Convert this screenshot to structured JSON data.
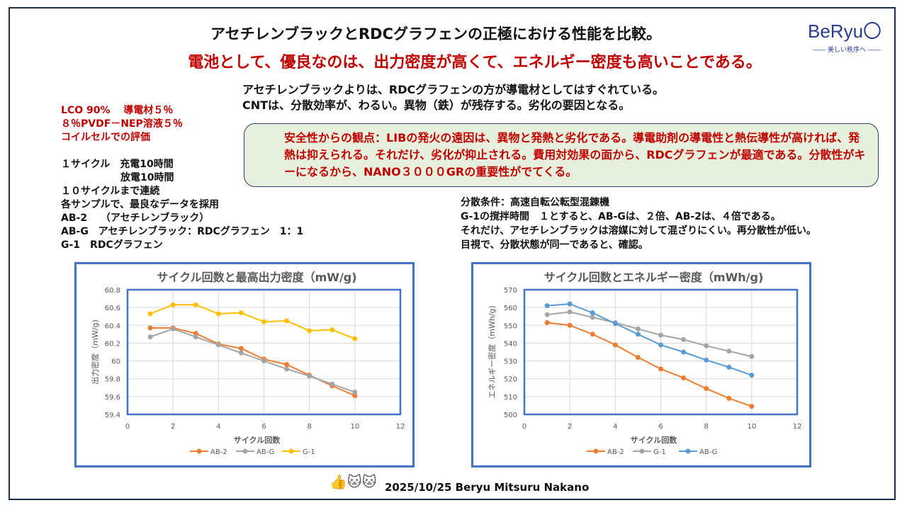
{
  "header": {
    "title": "アセチレンブラックとRDCグラフェンの正極における性能を比較。",
    "subtitle": "電池として、優良なのは、出力密度が高くて、エネルギー密度も高いことである。"
  },
  "logo": {
    "name": "BeRyu〇",
    "tagline": "―― 美しい秩序へ ――"
  },
  "intro": [
    "アセチレンブラックよりは、RDCグラフェンの方が導電材としてはすぐれている。",
    "CNTは、分散効率が、わるい。異物（鉄）が残存する。劣化の要因となる。"
  ],
  "conditions_red": [
    "LCO 90%　 導電材５％",
    "８％PVDF－NEP溶液５％",
    "コイルセルでの評価"
  ],
  "conditions": [
    "１サイクル　充電10時間",
    "　　　　　　放電10時間",
    "１０サイクルまで連続",
    "各サンプルで、最良なデータを採用",
    "AB-2　 （アセチレンブラック）",
    "AB-G　アセチレンブラック：RDCグラフェン　1：1",
    "G-1　RDCグラフェン"
  ],
  "callout": "安全性からの観点：LIBの発火の遠因は、異物と発熱と劣化である。導電助剤の導電性と熱伝導性が高ければ、発熱は抑えられる。それだけ、劣化が抑止される。費用対効果の面から、RDCグラフェンが最適である。分散性がキーになるから、NANO３０００GRの重要性がでてくる。",
  "dispersion": [
    "分散条件：高速自転公転型混錬機",
    "G-1の撹拌時間　１とすると、AB-Gは、２倍、AB-2は、４倍である。",
    "それだけ、アセチレンブラックは溶媒に対して混ざりにくい。再分散性が低い。",
    "目視で、分散状態が同一であると、確認。"
  ],
  "footer": {
    "text": "2025/10/25 Beryu Mitsuru Nakano",
    "icons": [
      "thumbs-up-icon",
      "lucky-cat-icon",
      "lucky-cat-icon"
    ]
  },
  "chart_data": [
    {
      "type": "line",
      "title": "サイクル回数と最高出力密度（mW/g)",
      "xlabel": "サイクル回数",
      "ylabel": "出力密度（mW/g)",
      "xlim": [
        0,
        12
      ],
      "ylim": [
        59.4,
        60.8
      ],
      "xticks": [
        0,
        2,
        4,
        6,
        8,
        10,
        12
      ],
      "yticks": [
        59.4,
        59.6,
        59.8,
        60,
        60.2,
        60.4,
        60.6,
        60.8
      ],
      "grid": true,
      "legend": "bottom",
      "x": [
        1,
        2,
        3,
        4,
        5,
        6,
        7,
        8,
        9,
        10
      ],
      "series": [
        {
          "name": "AB-2",
          "color": "#ed7d31",
          "values": [
            60.37,
            60.37,
            60.31,
            60.19,
            60.14,
            60.02,
            59.96,
            59.84,
            59.72,
            59.61
          ]
        },
        {
          "name": "AB-G",
          "color": "#a5a5a5",
          "values": [
            60.27,
            60.36,
            60.27,
            60.18,
            60.09,
            60.0,
            59.91,
            59.83,
            59.74,
            59.65
          ]
        },
        {
          "name": "G-1",
          "color": "#ffc000",
          "values": [
            60.53,
            60.63,
            60.63,
            60.53,
            60.54,
            60.44,
            60.45,
            60.34,
            60.35,
            60.25
          ]
        }
      ]
    },
    {
      "type": "line",
      "title": "サイクル回数とエネルギー密度（mWh/g)",
      "xlabel": "サイクル回数",
      "ylabel": "エネルギー密度（mWh/g)",
      "xlim": [
        0,
        12
      ],
      "ylim": [
        500,
        570
      ],
      "xticks": [
        0,
        2,
        4,
        6,
        8,
        10,
        12
      ],
      "yticks": [
        500,
        510,
        520,
        530,
        540,
        550,
        560,
        570
      ],
      "grid": true,
      "legend": "bottom",
      "x": [
        1,
        2,
        3,
        4,
        5,
        6,
        7,
        8,
        9,
        10
      ],
      "series": [
        {
          "name": "AB-2",
          "color": "#ed7d31",
          "values": [
            551.5,
            550,
            545,
            539,
            532,
            525.5,
            520.5,
            514.5,
            509,
            504.5
          ]
        },
        {
          "name": "G-1",
          "color": "#a5a5a5",
          "values": [
            556,
            557.5,
            554.5,
            551.5,
            548,
            544.5,
            542,
            538.5,
            535.5,
            532.5
          ]
        },
        {
          "name": "AB-G",
          "color": "#5b9bd5",
          "values": [
            561,
            562,
            557,
            551,
            545,
            539,
            535,
            530.5,
            526.5,
            522
          ]
        }
      ]
    }
  ]
}
